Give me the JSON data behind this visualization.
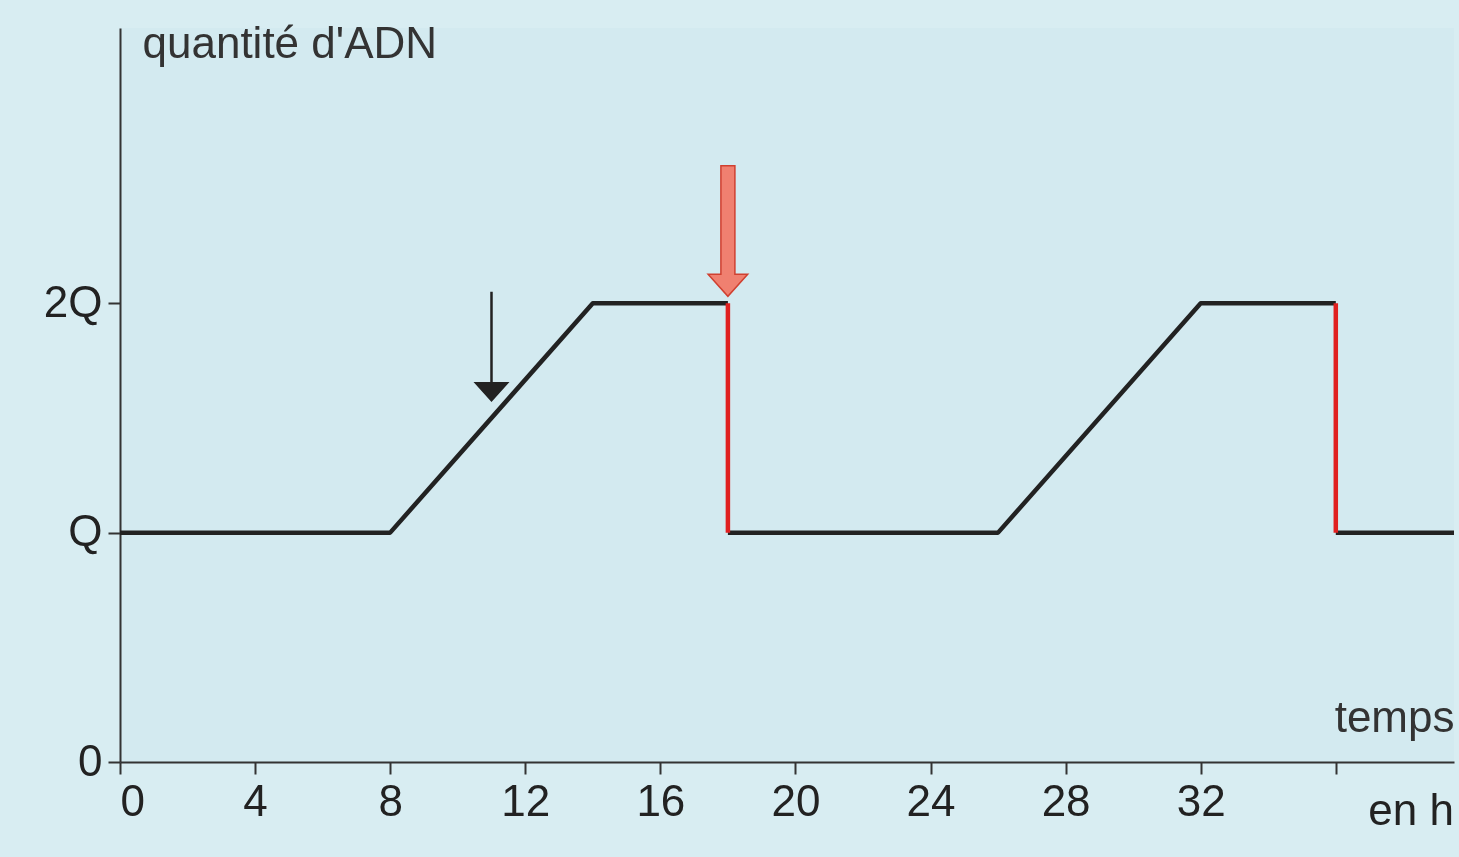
{
  "chart_data": {
    "type": "line",
    "ylabel": "quantité d'ADN",
    "xlabel": "temps",
    "annotations": [
      "en h"
    ],
    "xlim": [
      0,
      39.5
    ],
    "xticks": [
      0,
      4,
      8,
      12,
      16,
      20,
      24,
      28,
      32,
      {
        "value": 36,
        "label": null
      }
    ],
    "ylim": [
      0,
      3.2
    ],
    "yticks": [
      {
        "value": 0,
        "label": "0"
      },
      {
        "value": 1,
        "label": "Q"
      },
      {
        "value": 2,
        "label": "2Q"
      }
    ],
    "grid": false,
    "series": [
      {
        "color": "#222222",
        "x": [
          0,
          8,
          14,
          18,
          null,
          18,
          26,
          32,
          36,
          null,
          36,
          39.5
        ],
        "values": [
          1,
          1,
          2,
          2,
          null,
          1,
          1,
          2,
          2,
          null,
          1,
          1
        ]
      },
      {
        "color": "#e02020",
        "x": [
          18,
          18,
          null,
          36,
          36
        ],
        "values": [
          2,
          1,
          null,
          2,
          1
        ]
      }
    ]
  }
}
